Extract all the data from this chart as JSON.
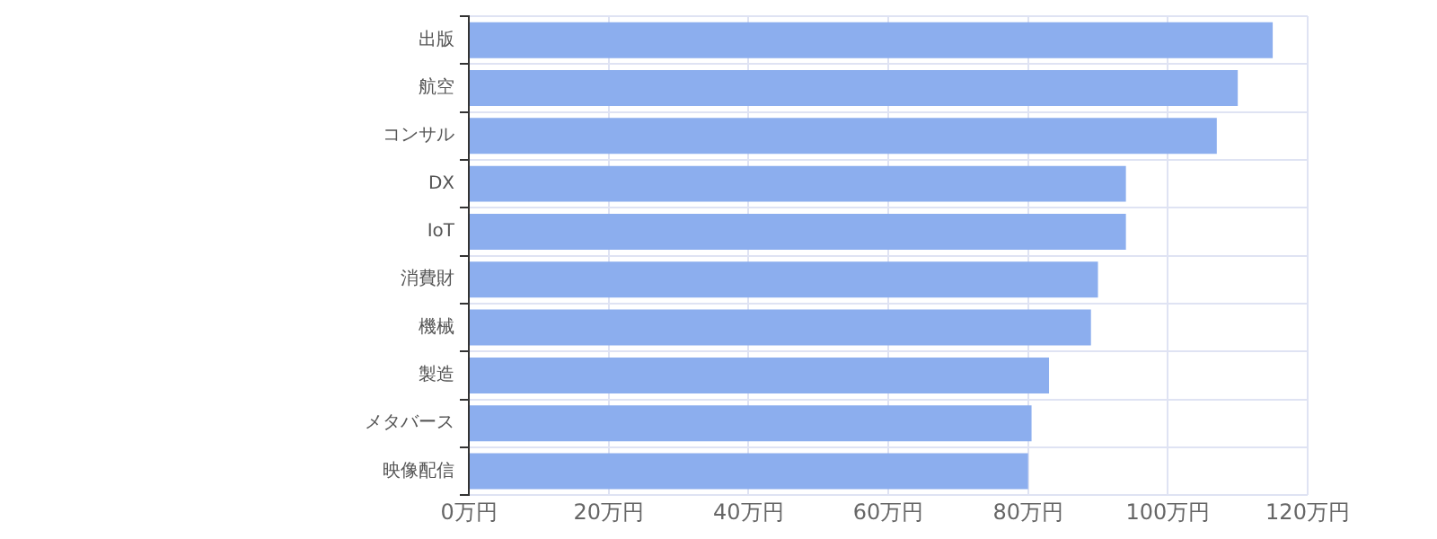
{
  "chart_data": {
    "type": "bar",
    "orientation": "horizontal",
    "categories": [
      "出版",
      "航空",
      "コンサル",
      "DX",
      "IoT",
      "消費財",
      "機械",
      "製造",
      "メタバース",
      "映像配信"
    ],
    "values": [
      115,
      110,
      107,
      94,
      94,
      90,
      89,
      83,
      80.5,
      80
    ],
    "color": "#8caeee",
    "xlim": [
      0,
      120
    ],
    "xticks": [
      {
        "value": 0,
        "label": "0万円"
      },
      {
        "value": 20,
        "label": "20万円"
      },
      {
        "value": 40,
        "label": "40万円"
      },
      {
        "value": 60,
        "label": "60万円"
      },
      {
        "value": 80,
        "label": "80万円"
      },
      {
        "value": 100,
        "label": "100万円"
      },
      {
        "value": 120,
        "label": "120万円"
      }
    ],
    "grid": true,
    "legend": false
  }
}
